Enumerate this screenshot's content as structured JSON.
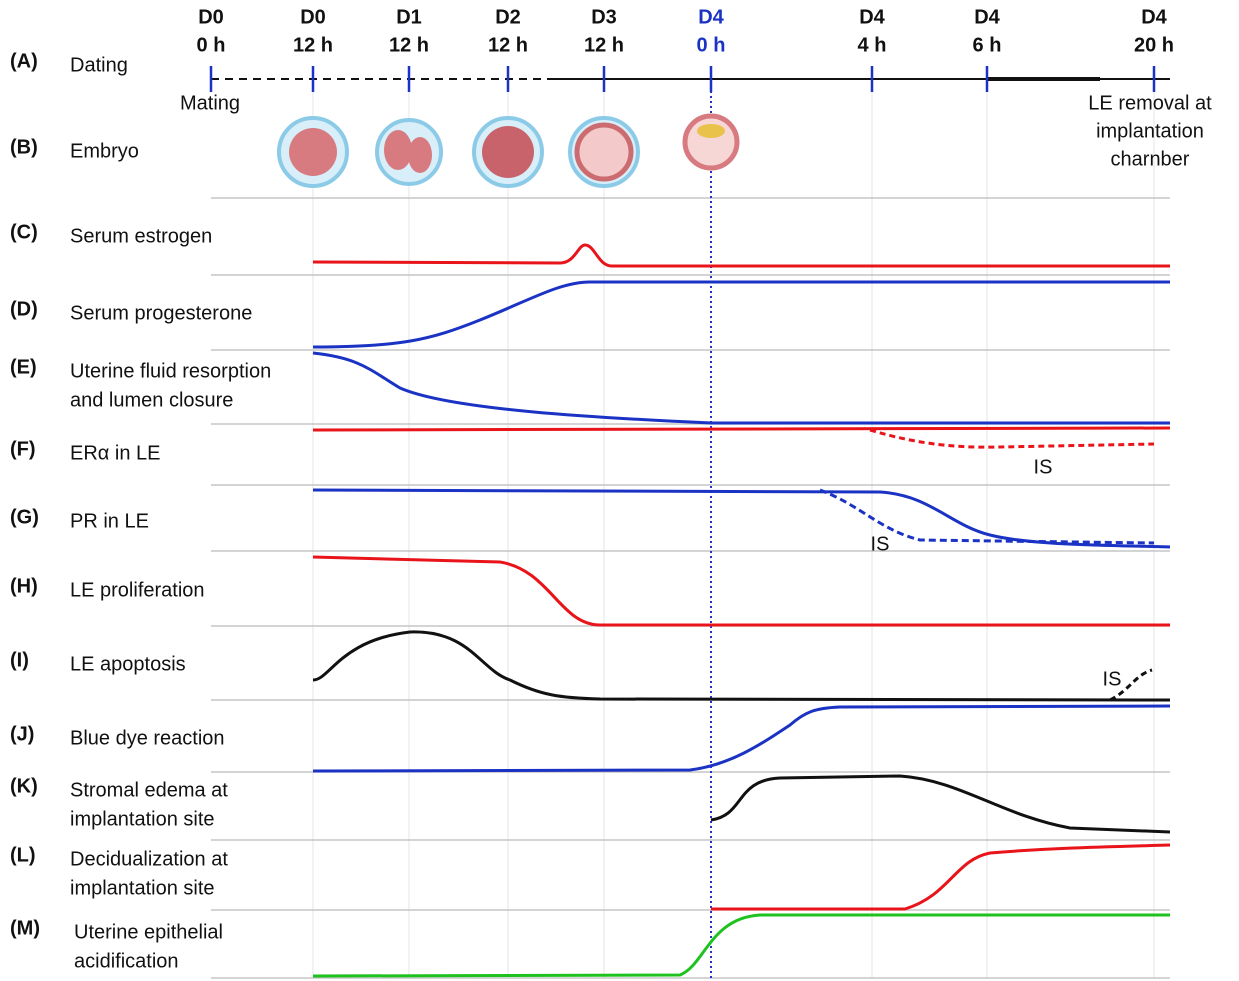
{
  "timeline": [
    {
      "day": "D0",
      "hour": "0 h"
    },
    {
      "day": "D0",
      "hour": "12 h"
    },
    {
      "day": "D1",
      "hour": "12 h"
    },
    {
      "day": "D2",
      "hour": "12 h"
    },
    {
      "day": "D3",
      "hour": "12 h"
    },
    {
      "day": "D4",
      "hour": "0 h"
    },
    {
      "day": "D4",
      "hour": "4 h"
    },
    {
      "day": "D4",
      "hour": "6 h"
    },
    {
      "day": "D4",
      "hour": "20 h"
    }
  ],
  "rows": [
    {
      "letter": "(A)",
      "label": [
        "Dating"
      ]
    },
    {
      "letter": "(B)",
      "label": [
        "Embryo"
      ]
    },
    {
      "letter": "(C)",
      "label": [
        "Serum estrogen"
      ]
    },
    {
      "letter": "(D)",
      "label": [
        "Serum progesterone"
      ]
    },
    {
      "letter": "(E)",
      "label": [
        "Uterine fluid resorption",
        "and lumen closure"
      ]
    },
    {
      "letter": "(F)",
      "label": [
        "ERα in LE"
      ]
    },
    {
      "letter": "(G)",
      "label": [
        "PR in LE"
      ]
    },
    {
      "letter": "(H)",
      "label": [
        "LE proliferation"
      ]
    },
    {
      "letter": "(I)",
      "label": [
        "LE apoptosis"
      ]
    },
    {
      "letter": "(J)",
      "label": [
        "Blue dye reaction"
      ]
    },
    {
      "letter": "(K)",
      "label": [
        "Stromal edema at",
        "implantation site"
      ]
    },
    {
      "letter": "(L)",
      "label": [
        "Decidualization at",
        "implantation site"
      ]
    },
    {
      "letter": "(M)",
      "label": [
        "Uterine epithelial",
        "acidification"
      ]
    }
  ],
  "annotations": {
    "mating": "Mating",
    "le_removal": [
      "LE removal at",
      "implantation",
      "charnber"
    ],
    "is_f": "IS",
    "is_g": "IS",
    "is_i": "IS"
  }
}
